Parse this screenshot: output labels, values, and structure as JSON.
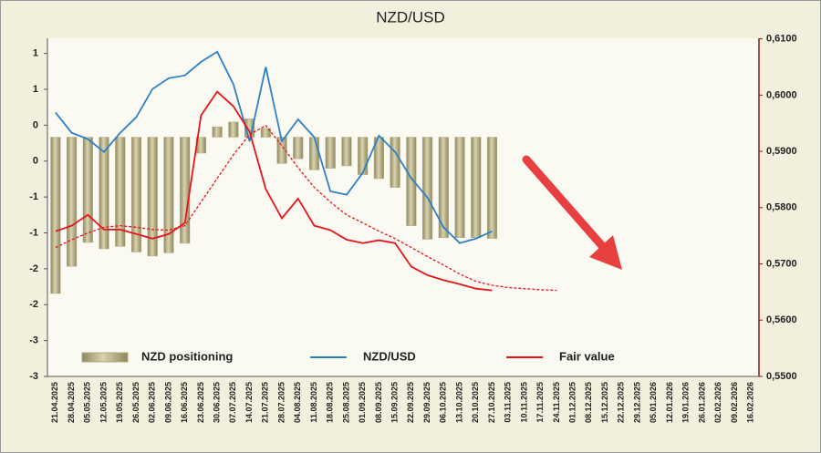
{
  "chart_data": {
    "type": "combo",
    "title": "NZD/USD",
    "categories": [
      "21.04.2025",
      "28.04.2025",
      "05.05.2025",
      "12.05.2025",
      "19.05.2025",
      "26.05.2025",
      "02.06.2025",
      "09.06.2025",
      "16.06.2025",
      "23.06.2025",
      "30.06.2025",
      "07.07.2025",
      "14.07.2025",
      "21.07.2025",
      "28.07.2025",
      "04.08.2025",
      "11.08.2025",
      "18.08.2025",
      "25.08.2025",
      "01.09.2025",
      "08.09.2025",
      "15.09.2025",
      "22.09.2025",
      "29.09.2025",
      "06.10.2025",
      "13.10.2025",
      "20.10.2025",
      "27.10.2025",
      "03.11.2025",
      "10.11.2025",
      "17.11.2025",
      "24.11.2025",
      "01.12.2025",
      "08.12.2025",
      "15.12.2025",
      "22.12.2025",
      "29.12.2025",
      "05.01.2026",
      "12.01.2026",
      "19.01.2026",
      "26.01.2026",
      "02.02.2026",
      "09.02.2026",
      "16.02.2026"
    ],
    "series": [
      {
        "name": "NZD positioning",
        "type": "bar",
        "color": "#b3ab80",
        "values": [
          -1.96,
          -1.62,
          -1.32,
          -1.4,
          -1.37,
          -1.44,
          -1.49,
          -1.45,
          -1.33,
          -0.2,
          0.13,
          0.19,
          0.23,
          0.11,
          -0.33,
          -0.27,
          -0.41,
          -0.39,
          -0.36,
          -0.47,
          -0.52,
          -0.63,
          -1.11,
          -1.28,
          -1.26,
          -1.26,
          -1.26,
          -1.27,
          null,
          null,
          null,
          null,
          null,
          null,
          null,
          null,
          null,
          null,
          null,
          null,
          null,
          null,
          null,
          null
        ]
      },
      {
        "name": "NZD/USD",
        "type": "line",
        "axis": "y2",
        "color": "#2e7fc6",
        "values": [
          0.5969,
          0.5933,
          0.5922,
          0.5899,
          0.5933,
          0.5961,
          0.6011,
          0.603,
          0.6035,
          0.6059,
          0.6077,
          0.6019,
          0.5918,
          0.605,
          0.5918,
          0.5957,
          0.5925,
          0.5829,
          0.5823,
          0.5862,
          0.5928,
          0.5899,
          0.5852,
          0.5818,
          0.5765,
          0.5737,
          0.5745,
          0.5758,
          null,
          null,
          null,
          null,
          null,
          null,
          null,
          null,
          null,
          null,
          null,
          null,
          null,
          null,
          null,
          null
        ]
      },
      {
        "name": "Fair value",
        "type": "line",
        "axis": "y2",
        "color": "#e8141b",
        "values": [
          0.5758,
          0.5768,
          0.5787,
          0.5761,
          0.5761,
          0.5753,
          0.5745,
          0.5753,
          0.5773,
          0.5964,
          0.6006,
          0.598,
          0.5935,
          0.5833,
          0.5781,
          0.5816,
          0.5768,
          0.576,
          0.5743,
          0.5737,
          0.5742,
          0.5737,
          0.5695,
          0.568,
          0.5671,
          0.5664,
          0.5656,
          0.5653,
          null,
          null,
          null,
          null,
          null,
          null,
          null,
          null,
          null,
          null,
          null,
          null,
          null,
          null,
          null,
          null
        ]
      },
      {
        "type": "line",
        "axis": "y2",
        "color": "#e8141b",
        "dashed": true,
        "values": [
          0.5729,
          0.5743,
          0.5755,
          0.5765,
          0.5768,
          0.5765,
          0.5761,
          0.576,
          0.5768,
          0.581,
          0.5852,
          0.5894,
          0.593,
          0.5946,
          0.591,
          0.5871,
          0.5836,
          0.581,
          0.5787,
          0.5773,
          0.5758,
          0.5745,
          0.5729,
          0.5713,
          0.5698,
          0.5682,
          0.5669,
          0.5662,
          0.5658,
          0.5656,
          0.5654,
          0.5653,
          null,
          null,
          null,
          null,
          null,
          null,
          null,
          null,
          null,
          null,
          null,
          null
        ]
      }
    ],
    "ylim": [
      -3,
      1.24
    ],
    "yticks": [
      -3,
      {
        "value": -2.55,
        "label": "-3"
      },
      {
        "value": -2.1,
        "label": "-2"
      },
      {
        "value": -1.65,
        "label": "-2"
      },
      {
        "value": -1.2,
        "label": "-1"
      },
      {
        "value": -0.75,
        "label": "-1"
      },
      {
        "value": -0.3,
        "label": "0"
      },
      {
        "value": 0.15,
        "label": "0"
      },
      {
        "value": 0.6,
        "label": "1"
      },
      {
        "value": 1.05,
        "label": "1"
      }
    ],
    "y2lim": [
      0.55,
      0.6101
    ],
    "y2ticks": [
      {
        "value": 0.55,
        "label": "0,5500"
      },
      {
        "value": 0.56,
        "label": "0,5600"
      },
      {
        "value": 0.57,
        "label": "0,5700"
      },
      {
        "value": 0.58,
        "label": "0,5800"
      },
      {
        "value": 0.59,
        "label": "0,5900"
      },
      {
        "value": 0.6,
        "label": "0,6000"
      },
      {
        "value": 0.61,
        "label": "0,6100"
      }
    ]
  }
}
